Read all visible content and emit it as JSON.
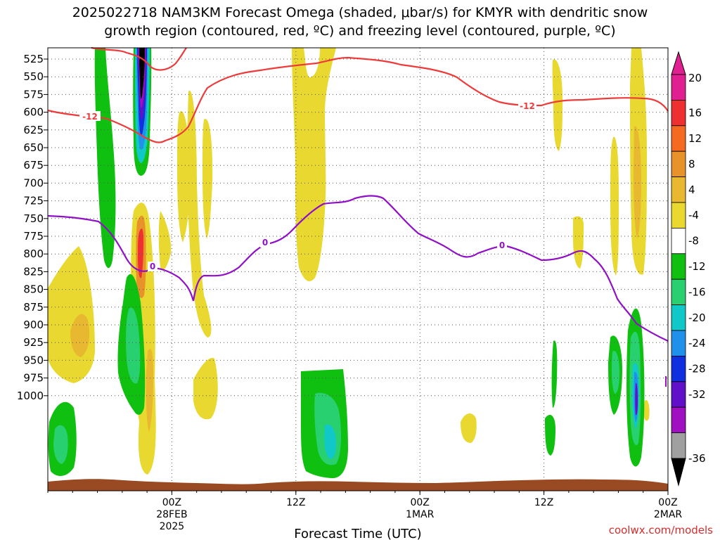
{
  "title": {
    "line1": "2025022718 NAM3KM Forecast Omega (shaded, μbar/s) for KMYR with dendritic snow",
    "line2": "growth region (contoured, red, ºC) and freezing level (contoured, purple, ºC)"
  },
  "credit": "coolwx.com/models",
  "chart_data": {
    "type": "contour",
    "xlabel": "Forecast Time (UTC)",
    "x_range_hours": [
      -5,
      20
    ],
    "x_ticks": [
      {
        "hour": 0,
        "lines": [
          "00Z",
          "28FEB",
          "2025"
        ]
      },
      {
        "hour": 5,
        "lines": [
          "12Z"
        ]
      },
      {
        "hour": 10,
        "lines": [
          "00Z",
          "1MAR"
        ]
      },
      {
        "hour": 15,
        "lines": [
          "12Z"
        ]
      },
      {
        "hour": 20,
        "lines": [
          "00Z",
          "2MAR"
        ]
      }
    ],
    "ylabel": "",
    "y_levels_hpa": [
      "525",
      "550",
      "575",
      "600",
      "625",
      "650",
      "675",
      "700",
      "725",
      "750",
      "775",
      "800",
      "825",
      "850",
      "875",
      "900",
      "925",
      "950",
      "975",
      "1000"
    ],
    "colorbar": {
      "levels": [
        "20",
        "16",
        "12",
        "8",
        "4",
        "-4",
        "-8",
        "-12",
        "-16",
        "-20",
        "-24",
        "-28",
        "-32",
        "-36"
      ],
      "colors": [
        "#ffffff",
        "#e02090",
        "#ee3030",
        "#f56a20",
        "#e8922a",
        "#e8b830",
        "#e8d830",
        "#ffffff",
        "#10c010",
        "#28d070",
        "#10c8c8",
        "#2090e8",
        "#1030e0",
        "#6010c8",
        "#a010c0",
        "#a0a0a0",
        "#000000"
      ]
    },
    "contours": [
      {
        "label": "-12",
        "color": "#ee3a3a"
      },
      {
        "label": "0",
        "color": "#9010c8"
      }
    ],
    "ground_color": "#9a4a22"
  }
}
